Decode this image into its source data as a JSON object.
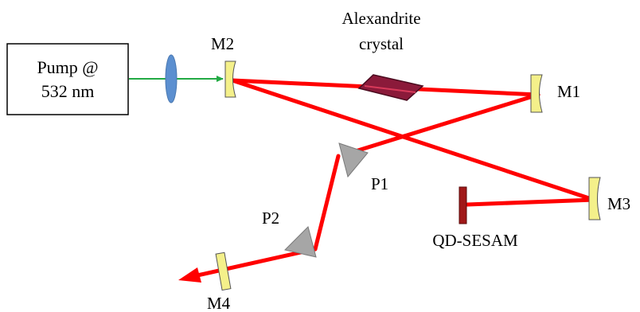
{
  "pump": {
    "line1": "Pump @",
    "line2": "532 nm"
  },
  "crystal": {
    "line1": "Alexandrite",
    "line2": "crystal"
  },
  "labels": {
    "m1": "M1",
    "m2": "M2",
    "m3": "M3",
    "m4": "M4",
    "p1": "P1",
    "p2": "P2",
    "sesam": "QD-SESAM"
  },
  "colors": {
    "beam": "#ff0000",
    "pump_beam": "#22aa44",
    "lens": "#5b8fd0",
    "mirror": "#f4f08a",
    "crystal": "#8b1a3a",
    "prism": "#a6a6a6",
    "sesam": "#a01818"
  }
}
